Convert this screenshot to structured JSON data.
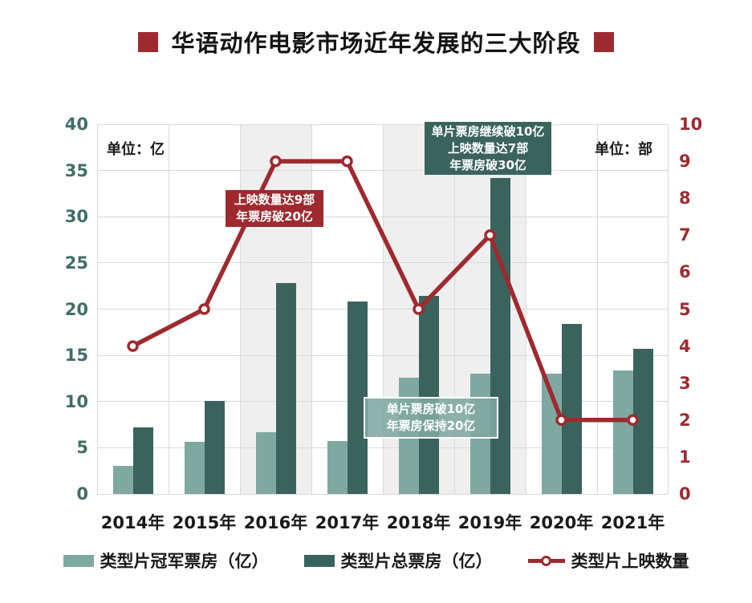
{
  "title": "华语动作电影市场近年发展的三大阶段",
  "colors": {
    "accent_red": "#9E2A2F",
    "light_teal": "#7FA8A1",
    "dark_teal": "#3A635E",
    "left_axis_text": "#3F6E69",
    "right_axis_text": "#9E2A2F",
    "gridline": "#D9D9D9",
    "highlight_band": "#EFEFEF",
    "text_dark": "#1A1A1A"
  },
  "chart_data": {
    "type": "bar",
    "subtype": "grouped-bar-with-line-combo",
    "categories": [
      "2014年",
      "2015年",
      "2016年",
      "2017年",
      "2018年",
      "2019年",
      "2020年",
      "2021年"
    ],
    "series": [
      {
        "name": "类型片冠军票房（亿）",
        "type": "bar",
        "axis": "left",
        "color": "#7FA8A1",
        "values": [
          3.0,
          5.6,
          6.7,
          5.7,
          12.6,
          13.0,
          13.0,
          13.4
        ]
      },
      {
        "name": "类型片总票房（亿）",
        "type": "bar",
        "axis": "left",
        "color": "#3A635E",
        "values": [
          7.2,
          10.1,
          22.8,
          20.8,
          21.4,
          34.2,
          18.4,
          15.7
        ]
      },
      {
        "name": "类型片上映数量",
        "type": "line",
        "axis": "right",
        "color": "#9E2A2F",
        "values": [
          4,
          5,
          9,
          9,
          5,
          7,
          2,
          2
        ]
      }
    ],
    "left_axis": {
      "unit_label": "单位：亿",
      "min": 0,
      "max": 40,
      "step": 5
    },
    "right_axis": {
      "unit_label": "单位：部",
      "min": 0,
      "max": 10,
      "step": 1
    },
    "grid": true,
    "legend_position": "bottom",
    "highlight_bands": {
      "category_index_ranges": [
        [
          2,
          2
        ],
        [
          4,
          5
        ]
      ]
    },
    "annotations": [
      {
        "style": "red-solid",
        "lines": [
          "上映数量达9部",
          "年票房破20亿"
        ]
      },
      {
        "style": "green-solid",
        "lines": [
          "单片票房继续破10亿",
          "上映数量达7部",
          "年票房破30亿"
        ]
      },
      {
        "style": "teal-outline",
        "lines": [
          "单片票房破10亿",
          "年票房保持20亿"
        ]
      }
    ]
  }
}
